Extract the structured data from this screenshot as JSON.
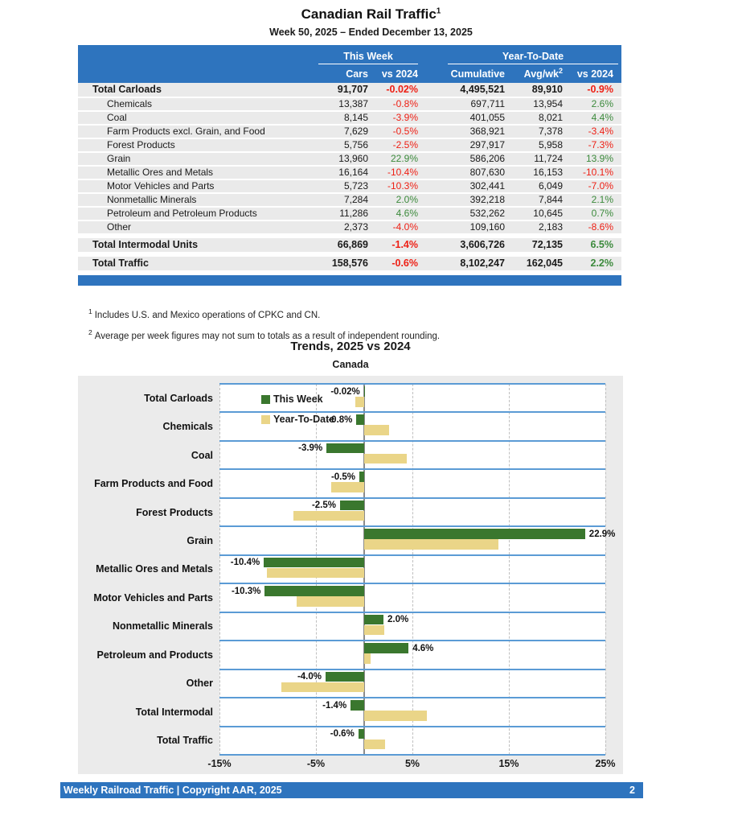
{
  "report": {
    "title": "Canadian Rail Traffic",
    "title_sup": "1",
    "subtitle": "Week 50, 2025 – Ended December 13, 2025"
  },
  "table": {
    "group_headers": {
      "this_week": "This Week",
      "ytd": "Year-To-Date"
    },
    "columns": [
      "Cars",
      "vs 2024",
      "Cumulative",
      "Avg/wk",
      "vs 2024"
    ],
    "avgwk_sup": "2",
    "rows": [
      {
        "label": "Total Carloads",
        "total": true,
        "gap": false,
        "cars": "91,707",
        "wk_vs": "-0.02%",
        "cum": "4,495,521",
        "avg": "89,910",
        "ytd_vs": "-0.9%"
      },
      {
        "label": "Chemicals",
        "total": false,
        "gap": false,
        "cars": "13,387",
        "wk_vs": "-0.8%",
        "cum": "697,711",
        "avg": "13,954",
        "ytd_vs": "2.6%"
      },
      {
        "label": "Coal",
        "total": false,
        "gap": false,
        "cars": "8,145",
        "wk_vs": "-3.9%",
        "cum": "401,055",
        "avg": "8,021",
        "ytd_vs": "4.4%"
      },
      {
        "label": "Farm Products excl. Grain, and Food",
        "total": false,
        "gap": false,
        "cars": "7,629",
        "wk_vs": "-0.5%",
        "cum": "368,921",
        "avg": "7,378",
        "ytd_vs": "-3.4%"
      },
      {
        "label": "Forest Products",
        "total": false,
        "gap": false,
        "cars": "5,756",
        "wk_vs": "-2.5%",
        "cum": "297,917",
        "avg": "5,958",
        "ytd_vs": "-7.3%"
      },
      {
        "label": "Grain",
        "total": false,
        "gap": false,
        "cars": "13,960",
        "wk_vs": "22.9%",
        "cum": "586,206",
        "avg": "11,724",
        "ytd_vs": "13.9%"
      },
      {
        "label": "Metallic Ores and Metals",
        "total": false,
        "gap": false,
        "cars": "16,164",
        "wk_vs": "-10.4%",
        "cum": "807,630",
        "avg": "16,153",
        "ytd_vs": "-10.1%"
      },
      {
        "label": "Motor Vehicles and Parts",
        "total": false,
        "gap": false,
        "cars": "5,723",
        "wk_vs": "-10.3%",
        "cum": "302,441",
        "avg": "6,049",
        "ytd_vs": "-7.0%"
      },
      {
        "label": "Nonmetallic Minerals",
        "total": false,
        "gap": false,
        "cars": "7,284",
        "wk_vs": "2.0%",
        "cum": "392,218",
        "avg": "7,844",
        "ytd_vs": "2.1%"
      },
      {
        "label": "Petroleum and Petroleum Products",
        "total": false,
        "gap": false,
        "cars": "11,286",
        "wk_vs": "4.6%",
        "cum": "532,262",
        "avg": "10,645",
        "ytd_vs": "0.7%"
      },
      {
        "label": "Other",
        "total": false,
        "gap": false,
        "cars": "2,373",
        "wk_vs": "-4.0%",
        "cum": "109,160",
        "avg": "2,183",
        "ytd_vs": "-8.6%"
      },
      {
        "label": "Total Intermodal Units",
        "total": true,
        "gap": true,
        "cars": "66,869",
        "wk_vs": "-1.4%",
        "cum": "3,606,726",
        "avg": "72,135",
        "ytd_vs": "6.5%"
      },
      {
        "label": "Total Traffic",
        "total": true,
        "gap": true,
        "cars": "158,576",
        "wk_vs": "-0.6%",
        "cum": "8,102,247",
        "avg": "162,045",
        "ytd_vs": "2.2%"
      }
    ]
  },
  "footnotes": [
    {
      "marker": "1",
      "text": "Includes U.S. and Mexico operations of CPKC and CN."
    },
    {
      "marker": "2",
      "text": "Average per week figures may not sum to totals as a result of independent rounding."
    }
  ],
  "chart_data": {
    "type": "bar",
    "orientation": "horizontal",
    "title": "Trends, 2025 vs 2024",
    "subtitle": "Canada",
    "categories": [
      "Total Carloads",
      "Chemicals",
      "Coal",
      "Farm Products and Food",
      "Forest Products",
      "Grain",
      "Metallic Ores and Metals",
      "Motor Vehicles and Parts",
      "Nonmetallic Minerals",
      "Petroleum and Products",
      "Other",
      "Total Intermodal",
      "Total Traffic"
    ],
    "series": [
      {
        "name": "This Week",
        "color": "#3A772E",
        "values": [
          -0.02,
          -0.8,
          -3.9,
          -0.5,
          -2.5,
          22.9,
          -10.4,
          -10.3,
          2.0,
          4.6,
          -4.0,
          -1.4,
          -0.6
        ],
        "labels": [
          "-0.02%",
          "-0.8%",
          "-3.9%",
          "-0.5%",
          "-2.5%",
          "22.9%",
          "-10.4%",
          "-10.3%",
          "2.0%",
          "4.6%",
          "-4.0%",
          "-1.4%",
          "-0.6%"
        ]
      },
      {
        "name": "Year-To-Date",
        "color": "#EAD588",
        "values": [
          -0.9,
          2.6,
          4.4,
          -3.4,
          -7.3,
          13.9,
          -10.1,
          -7.0,
          2.1,
          0.7,
          -8.6,
          6.5,
          2.2
        ]
      }
    ],
    "xlim": [
      -15,
      25
    ],
    "x_ticks": [
      "-15%",
      "-5%",
      "5%",
      "15%",
      "25%"
    ],
    "x_tick_values": [
      -15,
      -5,
      5,
      15,
      25
    ],
    "grid": "dashed-vertical",
    "legend_position": "top-left-inside"
  },
  "footer": {
    "text": "Weekly Railroad Traffic | Copyright AAR, 2025",
    "page": "2"
  },
  "colors": {
    "accent_blue": "#2E74BE",
    "negative_red": "#EE2015",
    "positive_green": "#3C8A3C",
    "bar_green": "#3A772E",
    "bar_khaki": "#EAD588",
    "band_line_blue": "#5B9BD5",
    "row_gray": "#EAEAEA",
    "panel_gray": "#EBEBEB"
  }
}
